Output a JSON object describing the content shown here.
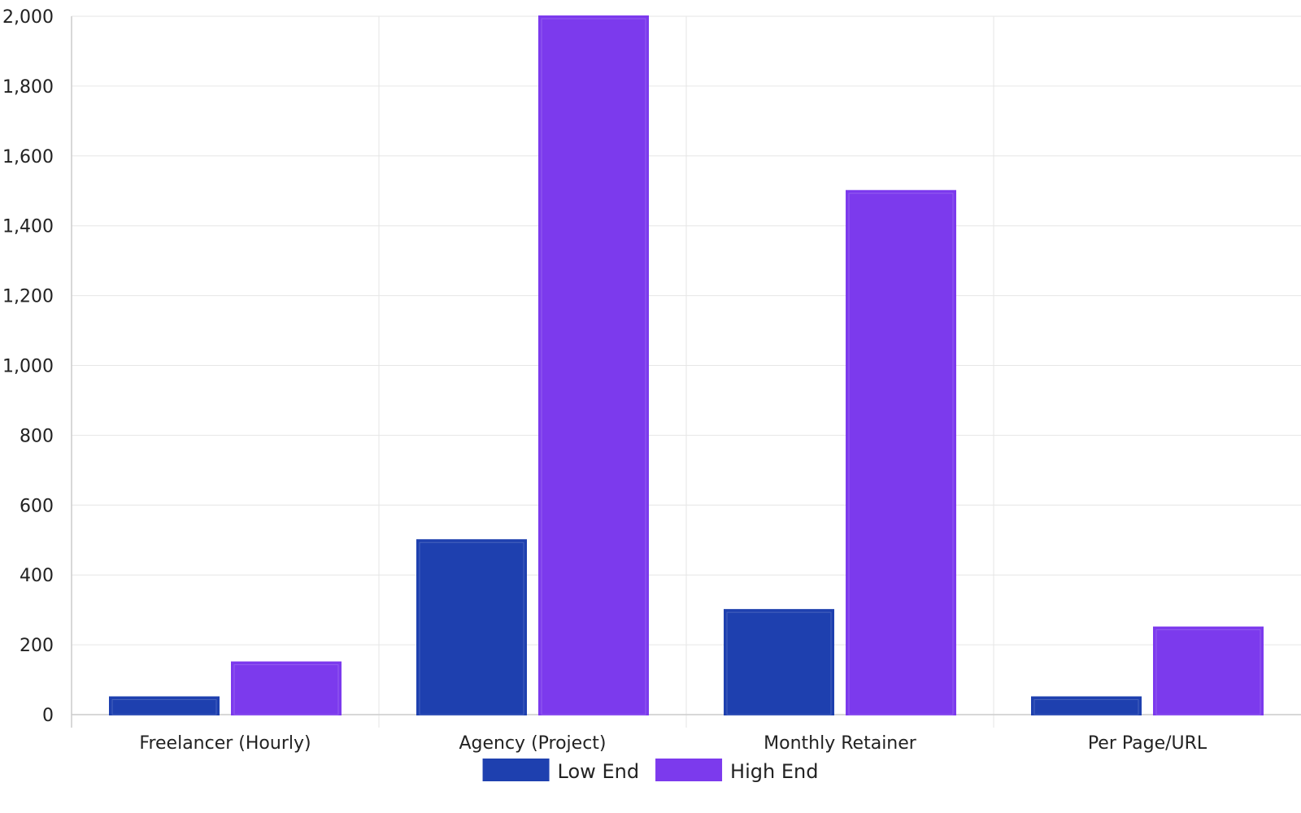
{
  "chart_data": {
    "type": "bar",
    "categories": [
      "Freelancer (Hourly)",
      "Agency (Project)",
      "Monthly Retainer",
      "Per Page/URL"
    ],
    "series": [
      {
        "name": "Low End",
        "values": [
          50,
          500,
          300,
          50
        ],
        "color": "#1E40AF"
      },
      {
        "name": "High End",
        "values": [
          150,
          2000,
          1500,
          250
        ],
        "color": "#7C3AED"
      }
    ],
    "yticks": [
      "0",
      "200",
      "400",
      "600",
      "800",
      "1,000",
      "1,200",
      "1,400",
      "1,600",
      "1,800",
      "2,000"
    ],
    "ylim": [
      0,
      2000
    ],
    "ytick_step": 200,
    "grid": true,
    "legend_position": "bottom-center",
    "title": "",
    "xlabel": "",
    "ylabel": ""
  }
}
